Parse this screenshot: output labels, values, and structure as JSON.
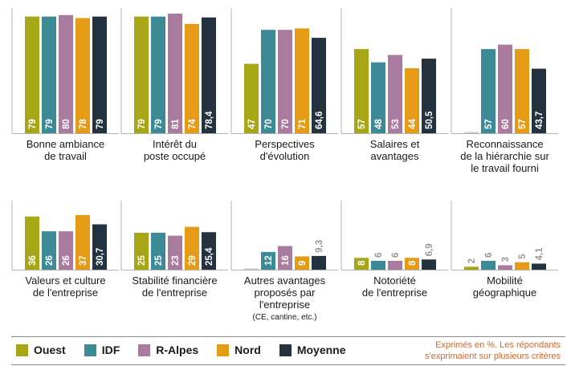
{
  "colors": {
    "Ouest": "#a6a617",
    "IDF": "#3d8a97",
    "R-Alpes": "#a97b9f",
    "Nord": "#e69b17",
    "Moyenne": "#24313f"
  },
  "legend": {
    "items": [
      "Ouest",
      "IDF",
      "R-Alpes",
      "Nord",
      "Moyenne"
    ]
  },
  "note": {
    "line1": "Exprimés en %. Les répondants",
    "line2": "s'exprimaient sur plusieurs critères"
  },
  "chart_data": [
    {
      "type": "bar",
      "title": [
        "Bonne ambiance",
        "de travail"
      ],
      "series": [
        "Ouest",
        "IDF",
        "R-Alpes",
        "Nord",
        "Moyenne"
      ],
      "values": [
        79,
        79,
        80,
        78,
        79
      ],
      "labels": [
        "79",
        "79",
        "80",
        "78",
        "79"
      ],
      "ylim": [
        0,
        85
      ]
    },
    {
      "type": "bar",
      "title": [
        "Intérêt du",
        "poste occupé"
      ],
      "series": [
        "Ouest",
        "IDF",
        "R-Alpes",
        "Nord",
        "Moyenne"
      ],
      "values": [
        79,
        79,
        81,
        74,
        78.4
      ],
      "labels": [
        "79",
        "79",
        "81",
        "74",
        "78,4"
      ],
      "ylim": [
        0,
        85
      ]
    },
    {
      "type": "bar",
      "title": [
        "Perspectives",
        "d'évolution"
      ],
      "series": [
        "Ouest",
        "IDF",
        "R-Alpes",
        "Nord",
        "Moyenne"
      ],
      "values": [
        47,
        70,
        70,
        71,
        64.6
      ],
      "labels": [
        "47",
        "70",
        "70",
        "71",
        "64,6"
      ],
      "ylim": [
        0,
        85
      ]
    },
    {
      "type": "bar",
      "title": [
        "Salaires et",
        "avantages"
      ],
      "series": [
        "Ouest",
        "IDF",
        "R-Alpes",
        "Nord",
        "Moyenne"
      ],
      "values": [
        57,
        48,
        53,
        44,
        50.5
      ],
      "labels": [
        "57",
        "48",
        "53",
        "44",
        "50,5"
      ],
      "ylim": [
        0,
        85
      ]
    },
    {
      "type": "bar",
      "title": [
        "Reconnaissance",
        "de la hiérarchie sur",
        "le travail fourni"
      ],
      "series": [
        "Ouest",
        "IDF",
        "R-Alpes",
        "Nord",
        "Moyenne"
      ],
      "values": [
        0,
        57,
        60,
        57,
        43.7
      ],
      "labels": [
        "",
        "57",
        "60",
        "57",
        "43,7"
      ],
      "ylim": [
        0,
        85
      ]
    },
    {
      "type": "bar",
      "title": [
        "Valeurs et culture",
        "de l'entreprise"
      ],
      "series": [
        "Ouest",
        "IDF",
        "R-Alpes",
        "Nord",
        "Moyenne"
      ],
      "values": [
        36,
        26,
        26,
        37,
        30.7
      ],
      "labels": [
        "36",
        "26",
        "26",
        "37",
        "30,7"
      ],
      "ylim": [
        0,
        85
      ]
    },
    {
      "type": "bar",
      "title": [
        "Stabilité financière",
        "de l'entreprise"
      ],
      "series": [
        "Ouest",
        "IDF",
        "R-Alpes",
        "Nord",
        "Moyenne"
      ],
      "values": [
        25,
        25,
        23,
        29,
        25.4
      ],
      "labels": [
        "25",
        "25",
        "23",
        "29",
        "25,4"
      ],
      "ylim": [
        0,
        85
      ]
    },
    {
      "type": "bar",
      "title": [
        "Autres avantages",
        "proposés par",
        "l'entreprise"
      ],
      "subtitle": "(CE, cantine, etc.)",
      "series": [
        "Ouest",
        "IDF",
        "R-Alpes",
        "Nord",
        "Moyenne"
      ],
      "values": [
        0,
        12,
        16,
        9,
        9.3
      ],
      "labels": [
        "",
        "12",
        "16",
        "9",
        "9,3"
      ],
      "ylim": [
        0,
        85
      ]
    },
    {
      "type": "bar",
      "title": [
        "Notoriété",
        "de l'entreprise"
      ],
      "series": [
        "Ouest",
        "IDF",
        "R-Alpes",
        "Nord",
        "Moyenne"
      ],
      "values": [
        8,
        6,
        6,
        8,
        6.9
      ],
      "labels": [
        "8",
        "6",
        "6",
        "8",
        "6,9"
      ],
      "ylim": [
        0,
        85
      ]
    },
    {
      "type": "bar",
      "title": [
        "Mobilité",
        "géographique"
      ],
      "series": [
        "Ouest",
        "IDF",
        "R-Alpes",
        "Nord",
        "Moyenne"
      ],
      "values": [
        2,
        6,
        3,
        5,
        4.1
      ],
      "labels": [
        "2",
        "6",
        "3",
        "5",
        "4,1"
      ],
      "ylim": [
        0,
        85
      ]
    }
  ]
}
